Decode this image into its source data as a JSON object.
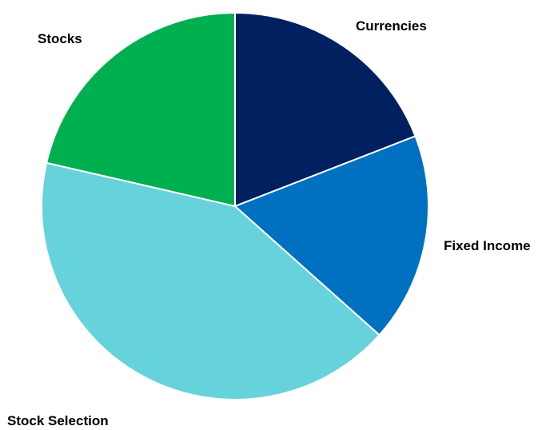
{
  "chart_data": {
    "type": "pie",
    "title": "",
    "start_angle_deg": 0,
    "direction": "clockwise",
    "slices": [
      {
        "label": "Currencies",
        "value": 19.1,
        "color": "#002060"
      },
      {
        "label": "Fixed Income",
        "value": 17.5,
        "color": "#0070C0"
      },
      {
        "label": "Stock Selection",
        "value": 42.0,
        "color": "#66D2DC"
      },
      {
        "label": "Stocks",
        "value": 21.4,
        "color": "#00B050"
      }
    ],
    "slice_border_color": "#FFFFFF",
    "legend": "none",
    "data_labels": false
  }
}
